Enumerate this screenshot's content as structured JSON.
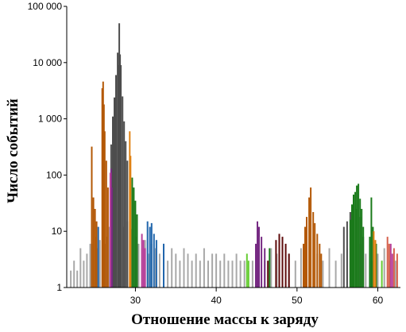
{
  "chart_data": {
    "type": "bar",
    "title": "",
    "xlabel": "Отношение массы к заряду",
    "ylabel": "Число событий",
    "yscale": "log",
    "ylim": [
      1,
      100000
    ],
    "xlim": [
      21.5,
      62.8
    ],
    "grid": false,
    "legend": "none",
    "y_ticks": [
      {
        "value": 1,
        "label": "1"
      },
      {
        "value": 10,
        "label": "10"
      },
      {
        "value": 100,
        "label": "100"
      },
      {
        "value": 1000,
        "label": "1 000"
      },
      {
        "value": 10000,
        "label": "10 000"
      },
      {
        "value": 100000,
        "label": "100 000"
      }
    ],
    "x_ticks": [
      {
        "value": 30,
        "label": "30"
      },
      {
        "value": 40,
        "label": "40"
      },
      {
        "value": 50,
        "label": "50"
      },
      {
        "value": 60,
        "label": "60"
      }
    ],
    "colors": {
      "background": "#a8a8a8",
      "orange": "#b35806",
      "dark": "#4d4d4d",
      "purple": "#762a83",
      "magenta": "#b8409a",
      "green": "#1a7a1a",
      "blue": "#2166ac",
      "gold": "#e08214",
      "maroon": "#5e0b0b",
      "lime": "#66cc33",
      "pink": "#d6604d"
    },
    "series": [
      {
        "color": "background",
        "x": [
          22.0,
          22.4,
          22.8,
          23.2,
          23.6,
          24.0,
          24.4,
          24.8,
          25.1,
          25.3,
          25.6,
          26.0,
          26.3,
          26.5,
          26.8,
          27.2,
          27.6,
          28.0,
          28.5,
          29.0,
          29.5,
          30.0,
          30.4,
          30.8,
          31.2,
          31.6,
          32.0,
          32.5,
          33.0,
          33.5,
          34.0,
          34.5,
          35.0,
          35.5,
          36.0,
          36.5,
          37.0,
          37.5,
          38.0,
          38.5,
          39.0,
          39.5,
          40.0,
          40.5,
          41.0,
          41.5,
          42.0,
          42.5,
          43.0,
          43.5,
          44.5,
          45.2,
          46.0,
          46.8,
          47.5,
          48.2,
          49.0,
          49.8,
          50.5,
          51.2,
          52.5,
          53.2,
          54.0,
          54.8,
          55.5,
          56.2,
          57.0,
          57.8,
          58.5,
          59.2,
          60.0,
          60.8,
          61.5,
          62.2
        ],
        "y": [
          2,
          3,
          2,
          5,
          3,
          4,
          6,
          6,
          8,
          5,
          7,
          9,
          6,
          8,
          12,
          9,
          14,
          20,
          12,
          15,
          11,
          8,
          6,
          5,
          7,
          4,
          6,
          5,
          4,
          6,
          3,
          5,
          4,
          3,
          5,
          4,
          3,
          4,
          3,
          5,
          3,
          4,
          4,
          3,
          4,
          3,
          3,
          4,
          3,
          3,
          3,
          4,
          3,
          5,
          4,
          3,
          4,
          3,
          5,
          3,
          4,
          3,
          5,
          3,
          4,
          5,
          3,
          6,
          4,
          3,
          4,
          5,
          3,
          3
        ]
      },
      {
        "color": "orange",
        "x": [
          24.6,
          24.8,
          25.0,
          25.2,
          25.9,
          26.0,
          26.1,
          26.2,
          26.4,
          26.6,
          50.8,
          51.0,
          51.2,
          51.5,
          51.7,
          52.0,
          52.2,
          52.5,
          52.8,
          53.0
        ],
        "y": [
          320,
          40,
          25,
          15,
          3500,
          4600,
          1800,
          600,
          180,
          60,
          6,
          12,
          18,
          40,
          60,
          22,
          14,
          9,
          6,
          4
        ]
      },
      {
        "color": "dark",
        "x": [
          27.0,
          27.2,
          27.4,
          27.6,
          27.8,
          27.9,
          28.0,
          28.1,
          28.2,
          28.4,
          28.6,
          28.8,
          29.0,
          55.8,
          56.2,
          56.6,
          57.0,
          57.4,
          57.8,
          58.2
        ],
        "y": [
          350,
          1100,
          2400,
          6000,
          15000,
          9000,
          50000,
          14000,
          9000,
          2500,
          900,
          400,
          180,
          12,
          15,
          22,
          30,
          25,
          18,
          8
        ]
      },
      {
        "color": "purple",
        "x": [
          27.0,
          27.1,
          44.9,
          45.1,
          45.3,
          45.6,
          46.0
        ],
        "y": [
          130,
          60,
          6,
          15,
          12,
          8,
          5
        ]
      },
      {
        "color": "magenta",
        "x": [
          26.9,
          30.8,
          31.0,
          31.2,
          61.6,
          61.8
        ],
        "y": [
          110,
          9,
          7,
          5,
          6,
          4
        ]
      },
      {
        "color": "green",
        "x": [
          29.6,
          29.8,
          30.0,
          30.2,
          46.6,
          56.6,
          56.8,
          57.0,
          57.2,
          57.4,
          57.6,
          57.8,
          58.0,
          58.2,
          59.0,
          59.2,
          59.4,
          59.8
        ],
        "y": [
          90,
          60,
          35,
          20,
          5,
          16,
          30,
          45,
          50,
          65,
          70,
          38,
          25,
          12,
          8,
          40,
          12,
          6
        ]
      },
      {
        "color": "blue",
        "x": [
          25.4,
          31.5,
          31.8,
          32.0,
          32.3,
          32.6,
          33.5
        ],
        "y": [
          12,
          15,
          12,
          14,
          9,
          7,
          6
        ]
      },
      {
        "color": "gold",
        "x": [
          29.3,
          29.4,
          59.5,
          59.7
        ],
        "y": [
          600,
          220,
          10,
          7
        ]
      },
      {
        "color": "maroon",
        "x": [
          46.4,
          47.4,
          47.8,
          48.2,
          48.6,
          49.0
        ],
        "y": [
          3,
          7,
          9,
          8,
          6,
          4
        ]
      },
      {
        "color": "lime",
        "x": [
          43.8,
          44.0,
          60.5
        ],
        "y": [
          4,
          3,
          3
        ]
      },
      {
        "color": "pink",
        "x": [
          61.2,
          61.4,
          62.0,
          62.4
        ],
        "y": [
          8,
          6,
          5,
          4
        ]
      }
    ]
  }
}
